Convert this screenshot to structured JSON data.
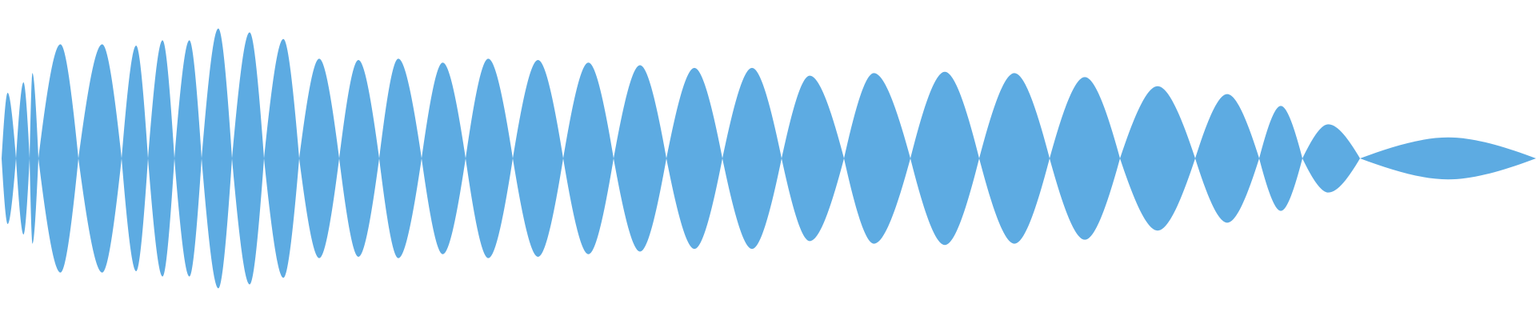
{
  "waveform": {
    "fill_color": "#5dabe2",
    "background_color": "#ffffff",
    "lobes": [
      {
        "a": 0.5,
        "peak": 0.42
      },
      {
        "a": 0.58,
        "peak": 0.55
      },
      {
        "a": 0.65,
        "peak": 0.32
      },
      {
        "a": 0.87,
        "peak": 0.55
      },
      {
        "a": 0.87,
        "peak": 0.55
      },
      {
        "a": 0.86,
        "peak": 0.55
      },
      {
        "a": 0.9,
        "peak": 0.55
      },
      {
        "a": 0.9,
        "peak": 0.55
      },
      {
        "a": 0.99,
        "peak": 0.55
      },
      {
        "a": 0.96,
        "peak": 0.55
      },
      {
        "a": 0.91,
        "peak": 0.55
      },
      {
        "a": 0.76,
        "peak": 0.5
      },
      {
        "a": 0.75,
        "peak": 0.48
      },
      {
        "a": 0.76,
        "peak": 0.45
      },
      {
        "a": 0.73,
        "peak": 0.48
      },
      {
        "a": 0.76,
        "peak": 0.48
      },
      {
        "a": 0.75,
        "peak": 0.5
      },
      {
        "a": 0.73,
        "peak": 0.5
      },
      {
        "a": 0.71,
        "peak": 0.5
      },
      {
        "a": 0.69,
        "peak": 0.5
      },
      {
        "a": 0.69,
        "peak": 0.5
      },
      {
        "a": 0.63,
        "peak": 0.45
      },
      {
        "a": 0.65,
        "peak": 0.45
      },
      {
        "a": 0.66,
        "peak": 0.5
      },
      {
        "a": 0.65,
        "peak": 0.5
      },
      {
        "a": 0.62,
        "peak": 0.5
      },
      {
        "a": 0.55,
        "peak": 0.5
      },
      {
        "a": 0.49,
        "peak": 0.5
      },
      {
        "a": 0.4,
        "peak": 0.5
      },
      {
        "a": 0.26,
        "peak": 0.45
      },
      {
        "a": 0.16,
        "peak": 0.5
      }
    ]
  }
}
